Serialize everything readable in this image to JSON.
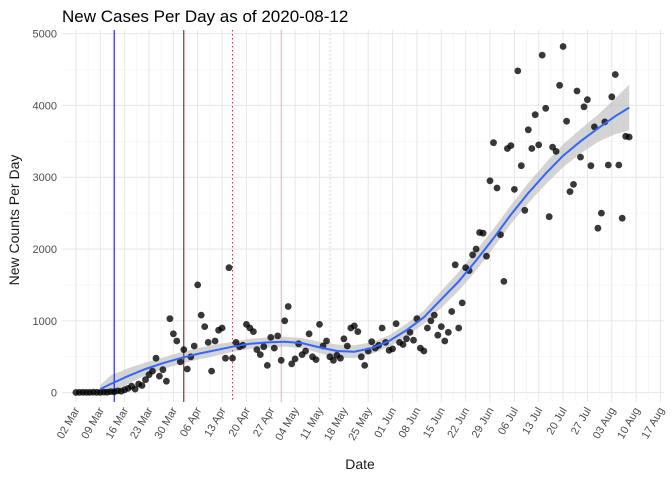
{
  "chart_data": {
    "type": "scatter",
    "title": "New Cases Per Day as of 2020-08-12",
    "xlabel": "Date",
    "ylabel": "New Counts Per Day",
    "x_unit": "days since 2020-03-02",
    "xlim": [
      -4,
      169
    ],
    "ylim": [
      -130,
      5050
    ],
    "y_ticks": [
      0,
      1000,
      2000,
      3000,
      4000,
      5000
    ],
    "y_tick_labels": [
      "0",
      "1000",
      "2000",
      "3000",
      "4000",
      "5000"
    ],
    "x_ticks": [
      0,
      7,
      14,
      21,
      28,
      35,
      42,
      49,
      56,
      63,
      70,
      77,
      84,
      91,
      98,
      105,
      112,
      119,
      126,
      133,
      140,
      147,
      154,
      161,
      168
    ],
    "x_tick_labels": [
      "02 Mar",
      "09 Mar",
      "16 Mar",
      "23 Mar",
      "30 Mar",
      "06 Apr",
      "13 Apr",
      "20 Apr",
      "27 Apr",
      "04 May",
      "11 May",
      "18 May",
      "25 May",
      "01 Jun",
      "08 Jun",
      "15 Jun",
      "22 Jun",
      "29 Jun",
      "06 Jul",
      "13 Jul",
      "20 Jul",
      "27 Jul",
      "03 Aug",
      "10 Aug",
      "17 Aug"
    ],
    "grid": true,
    "legend": "none",
    "vertical_lines": [
      {
        "x": 11,
        "color": "#0000cd",
        "style": "solid"
      },
      {
        "x": 31,
        "color": "#8b0000",
        "style": "solid"
      },
      {
        "x": 45,
        "color": "#cd3a3a",
        "style": "dotted"
      },
      {
        "x": 59,
        "color": "#f2a8a8",
        "style": "solid"
      },
      {
        "x": 73,
        "color": "#f4c2c2",
        "style": "dotted"
      }
    ],
    "points": [
      [
        0,
        2
      ],
      [
        1,
        3
      ],
      [
        2,
        5
      ],
      [
        3,
        4
      ],
      [
        4,
        3
      ],
      [
        5,
        6
      ],
      [
        6,
        5
      ],
      [
        7,
        4
      ],
      [
        8,
        8
      ],
      [
        9,
        6
      ],
      [
        10,
        15
      ],
      [
        11,
        12
      ],
      [
        12,
        25
      ],
      [
        13,
        20
      ],
      [
        14,
        40
      ],
      [
        15,
        60
      ],
      [
        16,
        90
      ],
      [
        17,
        50
      ],
      [
        18,
        120
      ],
      [
        19,
        100
      ],
      [
        20,
        180
      ],
      [
        21,
        250
      ],
      [
        22,
        300
      ],
      [
        23,
        480
      ],
      [
        24,
        230
      ],
      [
        25,
        320
      ],
      [
        26,
        160
      ],
      [
        27,
        1030
      ],
      [
        28,
        820
      ],
      [
        29,
        720
      ],
      [
        30,
        430
      ],
      [
        31,
        600
      ],
      [
        32,
        330
      ],
      [
        33,
        500
      ],
      [
        34,
        650
      ],
      [
        35,
        1500
      ],
      [
        36,
        1080
      ],
      [
        37,
        920
      ],
      [
        38,
        700
      ],
      [
        39,
        300
      ],
      [
        40,
        720
      ],
      [
        41,
        870
      ],
      [
        42,
        900
      ],
      [
        43,
        480
      ],
      [
        44,
        1740
      ],
      [
        45,
        480
      ],
      [
        46,
        700
      ],
      [
        47,
        640
      ],
      [
        48,
        660
      ],
      [
        49,
        950
      ],
      [
        50,
        900
      ],
      [
        51,
        850
      ],
      [
        52,
        600
      ],
      [
        53,
        530
      ],
      [
        54,
        640
      ],
      [
        55,
        380
      ],
      [
        56,
        770
      ],
      [
        57,
        620
      ],
      [
        58,
        790
      ],
      [
        59,
        450
      ],
      [
        60,
        1000
      ],
      [
        61,
        1200
      ],
      [
        62,
        400
      ],
      [
        63,
        470
      ],
      [
        64,
        680
      ],
      [
        65,
        530
      ],
      [
        66,
        580
      ],
      [
        67,
        820
      ],
      [
        68,
        500
      ],
      [
        69,
        460
      ],
      [
        70,
        950
      ],
      [
        71,
        650
      ],
      [
        72,
        720
      ],
      [
        73,
        500
      ],
      [
        74,
        450
      ],
      [
        75,
        520
      ],
      [
        76,
        480
      ],
      [
        77,
        750
      ],
      [
        78,
        650
      ],
      [
        79,
        900
      ],
      [
        80,
        930
      ],
      [
        81,
        850
      ],
      [
        82,
        500
      ],
      [
        83,
        380
      ],
      [
        84,
        580
      ],
      [
        85,
        710
      ],
      [
        86,
        620
      ],
      [
        87,
        660
      ],
      [
        88,
        900
      ],
      [
        89,
        700
      ],
      [
        90,
        590
      ],
      [
        91,
        610
      ],
      [
        92,
        960
      ],
      [
        93,
        700
      ],
      [
        94,
        670
      ],
      [
        95,
        750
      ],
      [
        96,
        840
      ],
      [
        97,
        730
      ],
      [
        98,
        1030
      ],
      [
        99,
        620
      ],
      [
        100,
        580
      ],
      [
        101,
        900
      ],
      [
        102,
        1000
      ],
      [
        103,
        1080
      ],
      [
        104,
        800
      ],
      [
        105,
        920
      ],
      [
        106,
        720
      ],
      [
        107,
        840
      ],
      [
        108,
        1130
      ],
      [
        109,
        1780
      ],
      [
        110,
        900
      ],
      [
        111,
        1250
      ],
      [
        112,
        1740
      ],
      [
        113,
        1700
      ],
      [
        114,
        1920
      ],
      [
        115,
        2000
      ],
      [
        116,
        2230
      ],
      [
        117,
        2220
      ],
      [
        118,
        1900
      ],
      [
        119,
        2950
      ],
      [
        120,
        3480
      ],
      [
        121,
        2850
      ],
      [
        122,
        2200
      ],
      [
        123,
        1550
      ],
      [
        124,
        3400
      ],
      [
        125,
        3440
      ],
      [
        126,
        2830
      ],
      [
        127,
        4480
      ],
      [
        128,
        3160
      ],
      [
        129,
        2540
      ],
      [
        130,
        3660
      ],
      [
        131,
        3400
      ],
      [
        132,
        3870
      ],
      [
        133,
        3450
      ],
      [
        134,
        4700
      ],
      [
        135,
        3960
      ],
      [
        136,
        2450
      ],
      [
        137,
        3420
      ],
      [
        138,
        3360
      ],
      [
        139,
        4280
      ],
      [
        140,
        4820
      ],
      [
        141,
        3780
      ],
      [
        142,
        2800
      ],
      [
        143,
        2900
      ],
      [
        144,
        4200
      ],
      [
        145,
        3280
      ],
      [
        146,
        3980
      ],
      [
        147,
        4080
      ],
      [
        148,
        3160
      ],
      [
        149,
        3700
      ],
      [
        150,
        2290
      ],
      [
        151,
        2500
      ],
      [
        152,
        3770
      ],
      [
        153,
        3170
      ],
      [
        154,
        4120
      ],
      [
        155,
        4430
      ],
      [
        156,
        3170
      ],
      [
        157,
        2430
      ],
      [
        158,
        3570
      ],
      [
        159,
        3560
      ]
    ],
    "smooth_fit": {
      "color": "#3366ff",
      "band_color": "#bdbdbd",
      "x": [
        7,
        10,
        15,
        20,
        25,
        30,
        35,
        40,
        45,
        50,
        55,
        60,
        65,
        70,
        75,
        80,
        85,
        90,
        95,
        100,
        105,
        110,
        115,
        120,
        125,
        130,
        135,
        140,
        145,
        150,
        155,
        159
      ],
      "y": [
        50,
        120,
        230,
        330,
        410,
        480,
        540,
        590,
        640,
        680,
        700,
        710,
        690,
        630,
        580,
        570,
        620,
        720,
        870,
        1050,
        1300,
        1550,
        1840,
        2150,
        2480,
        2780,
        3050,
        3300,
        3500,
        3680,
        3850,
        3970
      ],
      "lower": [
        -10,
        0,
        120,
        240,
        330,
        400,
        460,
        510,
        570,
        610,
        630,
        640,
        620,
        550,
        490,
        480,
        540,
        640,
        780,
        960,
        1180,
        1420,
        1700,
        2020,
        2350,
        2640,
        2900,
        3140,
        3330,
        3490,
        3600,
        3650
      ],
      "upper": [
        110,
        240,
        340,
        420,
        490,
        560,
        620,
        670,
        710,
        750,
        770,
        780,
        760,
        710,
        670,
        660,
        700,
        800,
        960,
        1140,
        1420,
        1680,
        1980,
        2280,
        2610,
        2920,
        3200,
        3460,
        3670,
        3870,
        4100,
        4290
      ]
    }
  }
}
